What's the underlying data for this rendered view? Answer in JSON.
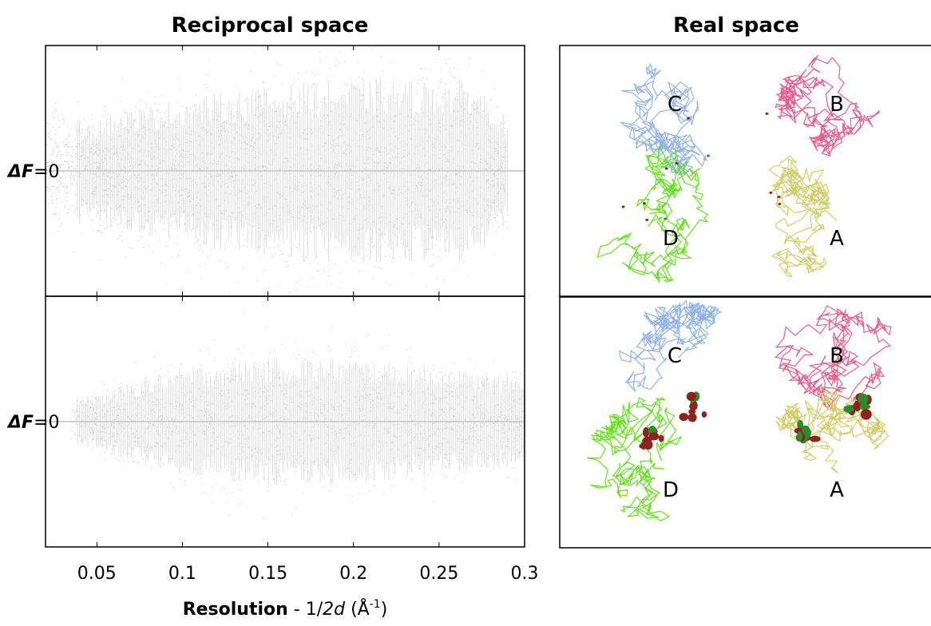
{
  "left_title": "Reciprocal space",
  "right_title": "Real space",
  "chart_data": [
    {
      "type": "scatter",
      "xlim": [
        0.02,
        0.3
      ],
      "xticks": [
        0.05,
        0.1,
        0.15,
        0.2,
        0.25,
        0.3
      ],
      "zero_label": {
        "symbol": "ΔF",
        "text": "=0"
      }
    },
    {
      "type": "scatter",
      "xlim": [
        0.02,
        0.3
      ],
      "xticks": [
        0.05,
        0.1,
        0.15,
        0.2,
        0.25,
        0.3
      ],
      "zero_label": {
        "symbol": "ΔF",
        "text": "=0"
      }
    }
  ],
  "x_label": {
    "bold": "Resolution",
    "plain": " - 1/",
    "italic": "2d",
    "unit": " (Å",
    "sup": "-1",
    "end": ")"
  },
  "structures": [
    {
      "chains": [
        "C",
        "B",
        "D",
        "A"
      ]
    },
    {
      "chains": [
        "C",
        "B",
        "D",
        "A"
      ]
    }
  ]
}
